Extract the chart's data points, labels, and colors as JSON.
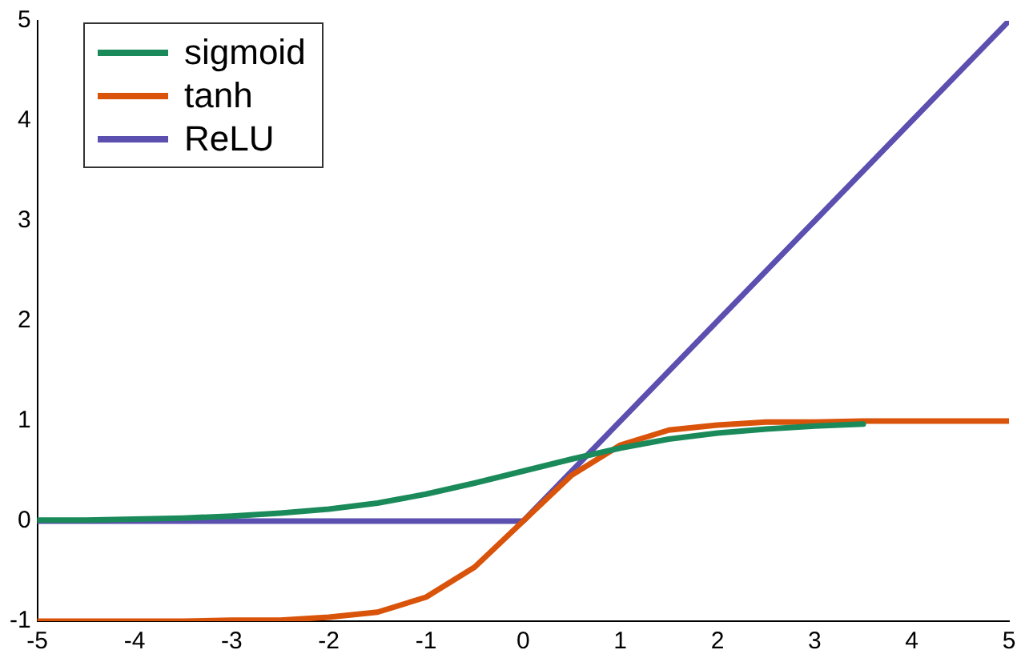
{
  "chart_data": {
    "type": "line",
    "x": [
      -5,
      -4.5,
      -4,
      -3.5,
      -3,
      -2.5,
      -2,
      -1.5,
      -1,
      -0.5,
      0,
      0.5,
      1,
      1.5,
      2,
      2.5,
      3,
      3.5,
      4,
      4.5,
      5
    ],
    "series": [
      {
        "name": "sigmoid",
        "color": "#1b8a5a",
        "values": [
          0.01,
          0.01,
          0.02,
          0.03,
          0.05,
          0.08,
          0.12,
          0.18,
          0.27,
          0.38,
          0.5,
          0.62,
          0.73,
          0.82,
          0.88,
          0.92,
          0.95,
          0.97,
          null,
          null,
          null
        ]
      },
      {
        "name": "tanh",
        "color": "#d9530a",
        "values": [
          -1,
          -1,
          -1,
          -1,
          -0.99,
          -0.99,
          -0.96,
          -0.91,
          -0.76,
          -0.46,
          0,
          0.46,
          0.76,
          0.91,
          0.96,
          0.99,
          0.99,
          1,
          1,
          1,
          1
        ]
      },
      {
        "name": "ReLU",
        "color": "#5b4fb0",
        "x": [
          -5,
          0,
          5
        ],
        "values": [
          0,
          0,
          5
        ]
      }
    ],
    "xlim": [
      -5,
      5
    ],
    "xticks": [
      -5,
      -4,
      -3,
      -2,
      -1,
      0,
      1,
      2,
      3,
      4,
      5
    ],
    "ylim": [
      -1,
      5
    ],
    "yticks": [
      -1,
      0,
      1,
      2,
      3,
      4,
      5
    ],
    "grid": false,
    "legend": "top left",
    "marker": "none",
    "line_style": "solid"
  }
}
